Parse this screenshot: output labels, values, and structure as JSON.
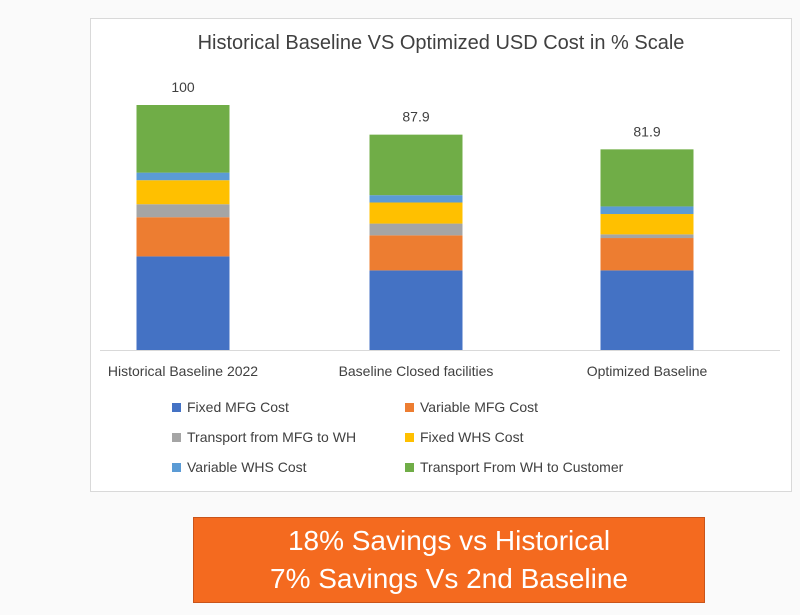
{
  "chart_data": {
    "type": "bar",
    "stacked": true,
    "title": "Historical Baseline VS Optimized USD Cost in % Scale",
    "categories": [
      "Historical Baseline 2022",
      "Baseline Closed facilities",
      "Optimized Baseline"
    ],
    "totals": [
      "100",
      "87.9",
      "81.9"
    ],
    "series": [
      {
        "name": "Fixed MFG Cost",
        "color": "#4472c4",
        "values": [
          38.2,
          32.5,
          32.5
        ]
      },
      {
        "name": "Variable MFG Cost",
        "color": "#ed7d31",
        "values": [
          16.0,
          14.3,
          13.2
        ]
      },
      {
        "name": "Transport from MFG to WH",
        "color": "#a5a5a5",
        "values": [
          5.3,
          4.8,
          1.5
        ]
      },
      {
        "name": "Fixed WHS Cost",
        "color": "#ffc000",
        "values": [
          9.8,
          8.6,
          8.3
        ]
      },
      {
        "name": "Variable WHS Cost",
        "color": "#5b9bd5",
        "values": [
          3.1,
          3.0,
          3.1
        ]
      },
      {
        "name": "Transport From WH to Customer",
        "color": "#70ad47",
        "values": [
          27.6,
          24.7,
          23.3
        ]
      }
    ],
    "ylim": [
      0,
      100
    ],
    "grid": false,
    "legend": "bottom"
  },
  "banner": {
    "line1": "18% Savings vs Historical",
    "line2": "7% Savings Vs 2nd Baseline",
    "color": "#f46a1f"
  }
}
